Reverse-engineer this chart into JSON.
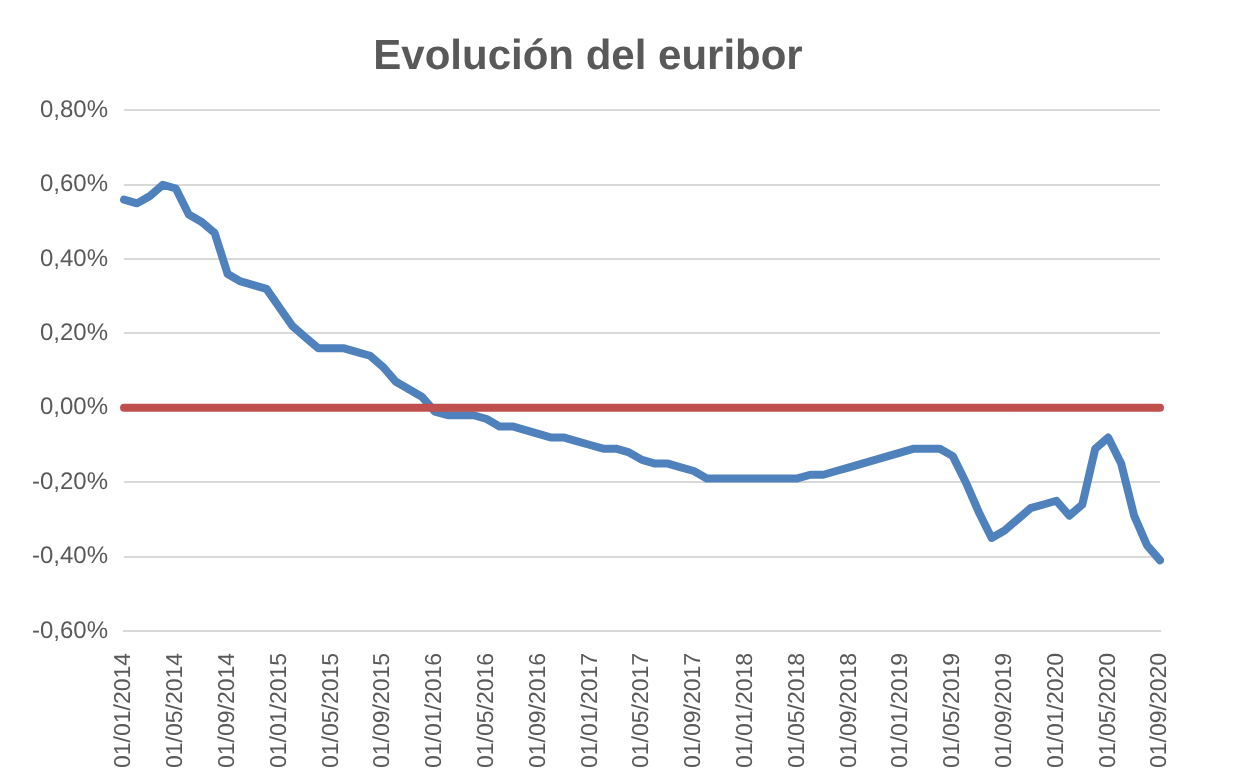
{
  "chart_data": {
    "type": "line",
    "title": "Evolución del euribor",
    "categories": [
      "01/01/2014",
      null,
      null,
      null,
      "01/05/2014",
      null,
      null,
      null,
      "01/09/2014",
      null,
      null,
      null,
      "01/01/2015",
      null,
      null,
      null,
      "01/05/2015",
      null,
      null,
      null,
      "01/09/2015",
      null,
      null,
      null,
      "01/01/2016",
      null,
      null,
      null,
      "01/05/2016",
      null,
      null,
      null,
      "01/09/2016",
      null,
      null,
      null,
      "01/01/2017",
      null,
      null,
      null,
      "01/05/2017",
      null,
      null,
      null,
      "01/09/2017",
      null,
      null,
      null,
      "01/01/2018",
      null,
      null,
      null,
      "01/05/2018",
      null,
      null,
      null,
      "01/09/2018",
      null,
      null,
      null,
      "01/01/2019",
      null,
      null,
      null,
      "01/05/2019",
      null,
      null,
      null,
      "01/09/2019",
      null,
      null,
      null,
      "01/01/2020",
      null,
      null,
      null,
      "01/05/2020",
      null,
      null,
      null,
      "01/09/2020"
    ],
    "series": [
      {
        "color": "#4f81bd",
        "values": [
          0.56,
          0.55,
          0.57,
          0.6,
          0.59,
          0.52,
          0.5,
          0.47,
          0.36,
          0.34,
          0.33,
          0.32,
          0.27,
          0.22,
          0.19,
          0.16,
          0.16,
          0.16,
          0.15,
          0.14,
          0.11,
          0.07,
          0.05,
          0.03,
          -0.01,
          -0.02,
          -0.02,
          -0.02,
          -0.03,
          -0.05,
          -0.05,
          -0.06,
          -0.07,
          -0.08,
          -0.08,
          -0.09,
          -0.1,
          -0.11,
          -0.11,
          -0.12,
          -0.14,
          -0.15,
          -0.15,
          -0.16,
          -0.17,
          -0.19,
          -0.19,
          -0.19,
          -0.19,
          -0.19,
          -0.19,
          -0.19,
          -0.19,
          -0.18,
          -0.18,
          -0.17,
          -0.16,
          -0.15,
          -0.14,
          -0.13,
          -0.12,
          -0.11,
          -0.11,
          -0.11,
          -0.13,
          -0.2,
          -0.28,
          -0.35,
          -0.33,
          -0.3,
          -0.27,
          -0.26,
          -0.25,
          -0.29,
          -0.26,
          -0.11,
          -0.08,
          -0.15,
          -0.29,
          -0.37,
          -0.41
        ]
      }
    ],
    "ref_lines": [
      {
        "axis": "y",
        "value": 0,
        "color": "#c0504d"
      }
    ],
    "ylim": [
      -0.6,
      0.8
    ],
    "yticks": [
      {
        "value": -0.6,
        "label": "-0,60%"
      },
      {
        "value": -0.4,
        "label": "-0,40%"
      },
      {
        "value": -0.2,
        "label": "-0,20%"
      },
      {
        "value": 0,
        "label": "0,00%"
      },
      {
        "value": 0.2,
        "label": "0,20%"
      },
      {
        "value": 0.4,
        "label": "0,40%"
      },
      {
        "value": 0.6,
        "label": "0,60%"
      },
      {
        "value": 0.8,
        "label": "0,80%"
      }
    ],
    "grid": "y",
    "legend": false,
    "marker": "none",
    "line_style": "solid"
  }
}
